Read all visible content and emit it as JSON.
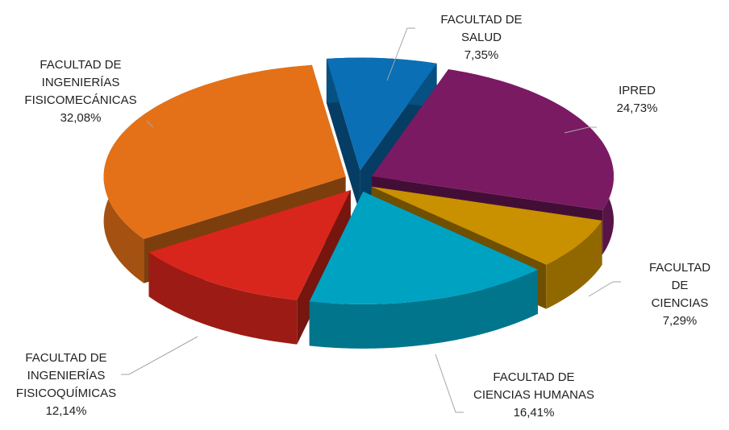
{
  "chart_data": {
    "type": "pie3d",
    "categories": [
      "FACULTAD DE\nSALUD",
      "IPRED",
      "FACULTAD DE\nCIENCIAS",
      "FACULTAD DE\nCIENCIAS HUMANAS",
      "FACULTAD DE\nINGENIERÍAS\nFISICOQUÍMICAS",
      "FACULTAD DE\nINGENIERÍAS\nFISICOMECÁNICAS"
    ],
    "values": [
      7.35,
      24.73,
      7.29,
      16.41,
      12.14,
      32.08
    ],
    "value_labels": [
      "7,35%",
      "24,73%",
      "7,29%",
      "16,41%",
      "12,14%",
      "32,08%"
    ],
    "colors": [
      "#0a6fb5",
      "#7a1a63",
      "#c99000",
      "#00a2c2",
      "#d9261c",
      "#e47118"
    ]
  }
}
